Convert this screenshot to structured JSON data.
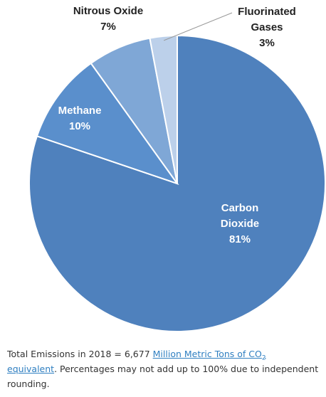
{
  "chart_data": {
    "type": "pie",
    "start_angle_deg": 0,
    "direction": "clockwise",
    "slices": [
      {
        "label_lines": [
          "Carbon",
          "Dioxide",
          "81%"
        ],
        "value": 81,
        "color": "#4f81bd",
        "label_color": "#ffffff"
      },
      {
        "label_lines": [
          "Methane",
          "10%"
        ],
        "value": 10,
        "color": "#5a8fcc",
        "label_color": "#ffffff"
      },
      {
        "label_lines": [
          "Nitrous Oxide",
          "7%"
        ],
        "value": 7,
        "color": "#7fa7d6",
        "label_color": "#222222"
      },
      {
        "label_lines": [
          "Fluorinated",
          "Gases",
          "3%"
        ],
        "value": 3,
        "color": "#bcd0ea",
        "label_color": "#222222"
      }
    ]
  },
  "caption": {
    "prefix": "Total Emissions in 2018 = 6,677 ",
    "link_text": "Million Metric Tons of CO",
    "link_sub": "2",
    "link_text_2": "equivalent",
    "suffix": ". Percentages may not add up to 100% due to independent rounding."
  },
  "colors": {
    "slice_border": "#ffffff",
    "leader_line": "#999999"
  }
}
